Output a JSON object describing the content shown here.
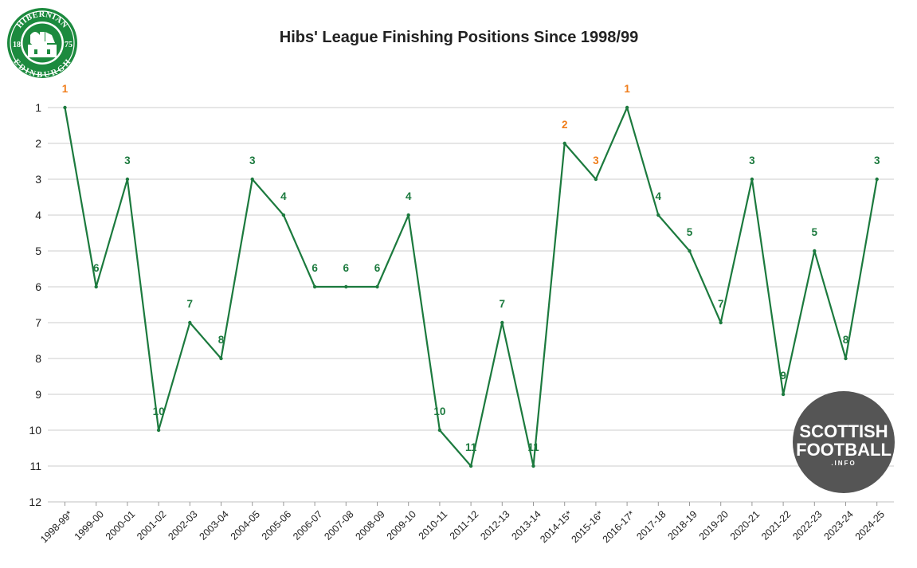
{
  "chart_data": {
    "type": "line",
    "title": "Hibs' League Finishing Positions Since 1998/99",
    "xlabel": "",
    "ylabel": "",
    "categories": [
      "1998-99*",
      "1999-00",
      "2000-01",
      "2001-02",
      "2002-03",
      "2003-04",
      "2004-05",
      "2005-06",
      "2006-07",
      "2007-08",
      "2008-09",
      "2009-10",
      "2010-11",
      "2011-12",
      "2012-13",
      "2013-14",
      "2014-15*",
      "2015-16*",
      "2016-17*",
      "2017-18",
      "2018-19",
      "2019-20",
      "2020-21",
      "2021-22",
      "2022-23",
      "2023-24",
      "2024-25"
    ],
    "values": [
      1,
      6,
      3,
      10,
      7,
      8,
      3,
      4,
      6,
      6,
      6,
      4,
      10,
      11,
      7,
      11,
      2,
      3,
      1,
      4,
      5,
      7,
      3,
      9,
      5,
      8,
      3
    ],
    "highlight_indices": [
      0,
      16,
      17,
      18
    ],
    "ylim": [
      1,
      12
    ],
    "y_inverted": true,
    "yticks": [
      1,
      2,
      3,
      4,
      5,
      6,
      7,
      8,
      9,
      10,
      11,
      12
    ],
    "grid": true,
    "legend": "none",
    "colors": {
      "line": "#1c7a3e",
      "label": "#1c7a3e",
      "highlight_label": "#f07d1a",
      "grid": "#cccccc"
    }
  },
  "logo": {
    "name": "hibernian-crest",
    "top_text": "HIBERNIAN",
    "bottom_text": "EDINBURGH",
    "left_year": "18",
    "right_year": "75",
    "color": "#1c8a3e"
  },
  "watermark": {
    "name": "scottish-football-info-logo",
    "line1": "SCOTTISH",
    "line2": "FOOTBALL",
    "line3": ".INFO",
    "color": "#555555"
  }
}
